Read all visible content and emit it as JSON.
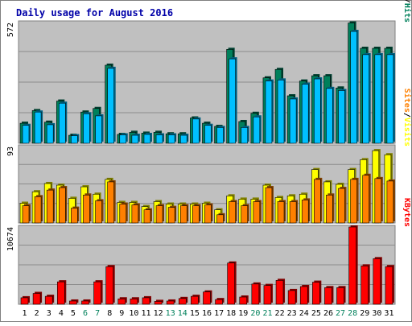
{
  "chart_data": {
    "type": "bar",
    "title": "Daily usage for August 2016",
    "colors": {
      "title": "#0000a8",
      "panel_bg": "#c0c0c0",
      "border": "#808080",
      "gridline": "#8c8c8c",
      "hits": "#00805b",
      "files": "#00c0ff",
      "pages": "#00a0c0",
      "visits": "#ffff00",
      "sites": "#ff8000",
      "kbytes": "#ff0000",
      "weekday": "#000000",
      "weekend": "#00805b"
    },
    "categories": [
      "1",
      "2",
      "3",
      "4",
      "5",
      "6",
      "7",
      "8",
      "9",
      "10",
      "11",
      "12",
      "13",
      "14",
      "15",
      "16",
      "17",
      "18",
      "19",
      "20",
      "21",
      "22",
      "23",
      "24",
      "25",
      "26",
      "27",
      "28",
      "29",
      "30",
      "31"
    ],
    "weekend_days": [
      "6",
      "7",
      "13",
      "14",
      "20",
      "21",
      "27",
      "28"
    ],
    "panels": [
      {
        "name": "hits-files-pages",
        "max_label": "572",
        "ymax": 572,
        "legend": [
          "Pages",
          "/",
          "Files",
          "/",
          "Hits"
        ],
        "legend_colors": [
          "#00a0c0",
          "#000000",
          "#0000ff",
          "#000000",
          "#00805b"
        ],
        "series": [
          {
            "name": "Hits",
            "values": [
              95,
              155,
              100,
              200,
              38,
              148,
              165,
              370,
              42,
              52,
              48,
              52,
              45,
              45,
              120,
              95,
              80,
              445,
              103,
              142,
              310,
              350,
              225,
              295,
              320,
              320,
              262,
              570,
              450,
              450,
              450
            ]
          },
          {
            "name": "Files",
            "values": [
              85,
              148,
              88,
              190,
              36,
              140,
              130,
              355,
              40,
              38,
              42,
              40,
              40,
              38,
              115,
              85,
              75,
              400,
              75,
              125,
              295,
              300,
              210,
              280,
              305,
              260,
              250,
              530,
              420,
              420,
              420
            ]
          }
        ]
      },
      {
        "name": "visits-sites",
        "max_label": "93",
        "ymax": 93,
        "legend": [
          "Sites",
          "/",
          "Visits"
        ],
        "legend_colors": [
          "#ff8000",
          "#000000",
          "#ffff00"
        ],
        "series": [
          {
            "name": "Visits",
            "values": [
              24,
              38,
              48,
              46,
              30,
              44,
              35,
              53,
              25,
              25,
              20,
              26,
              23,
              23,
              23,
              24,
              16,
              33,
              29,
              29,
              46,
              31,
              33,
              35,
              65,
              50,
              47,
              65,
              77,
              88,
              83
            ]
          },
          {
            "name": "Sites",
            "values": [
              21,
              32,
              40,
              43,
              18,
              34,
              27,
              50,
              23,
              22,
              16,
              21,
              19,
              21,
              21,
              22,
              10,
              26,
              21,
              26,
              43,
              26,
              26,
              28,
              53,
              34,
              42,
              53,
              58,
              54,
              51
            ]
          }
        ]
      },
      {
        "name": "kbytes",
        "max_label": "10674",
        "ymax": 10674,
        "legend": [
          "KBytes"
        ],
        "legend_colors": [
          "#ff0000"
        ],
        "series": [
          {
            "name": "KBytes",
            "values": [
              900,
              1500,
              1100,
              3100,
              450,
              450,
              3100,
              5200,
              750,
              750,
              900,
              400,
              450,
              800,
              1100,
              1700,
              650,
              5700,
              1000,
              2800,
              2600,
              3300,
              1900,
              2450,
              3050,
              2300,
              2300,
              10674,
              5300,
              6300,
              5200
            ]
          }
        ]
      }
    ]
  }
}
